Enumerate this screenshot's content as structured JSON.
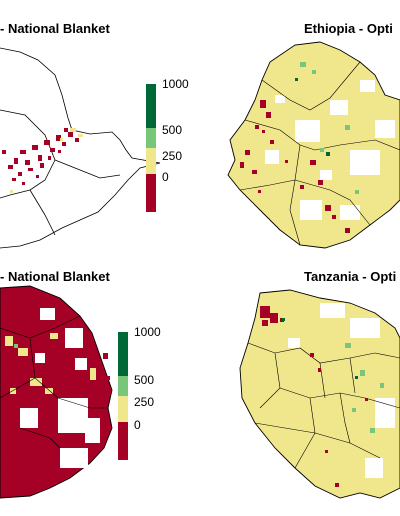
{
  "panels": {
    "top_left": {
      "title": "- National Blanket"
    },
    "top_right": {
      "title": "Ethiopia - Opti"
    },
    "bottom_left": {
      "title": "- National Blanket"
    },
    "bottom_right": {
      "title": "Tanzania - Opti"
    }
  },
  "legend": {
    "labels": [
      "1000",
      "500",
      "250",
      "0"
    ],
    "colors": {
      "high": "#006837",
      "mid": "#78c679",
      "low": "#f0e68c",
      "negative": "#a50026"
    }
  }
}
